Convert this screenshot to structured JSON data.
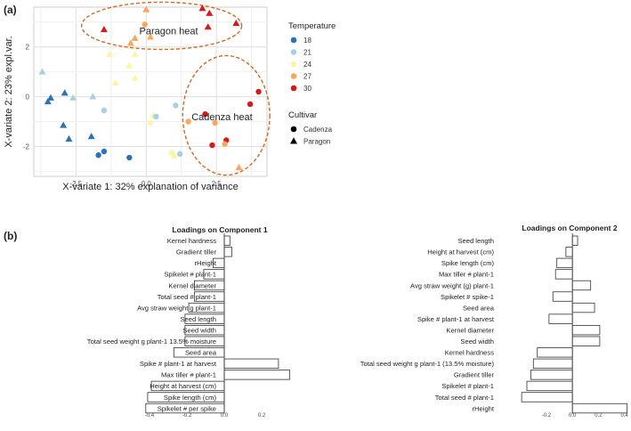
{
  "panel_a": {
    "label": "(a)"
  },
  "panel_b": {
    "label": "(b)"
  },
  "chart_data": [
    {
      "type": "scatter",
      "xlabel": "X-variate 1: 32% explanation of variance",
      "ylabel": "X-variate 2: 23% expl.var.",
      "xlim": [
        -4.0,
        4.3
      ],
      "ylim": [
        -3.2,
        3.6
      ],
      "xticks": [
        -2.5,
        0.0,
        2.5
      ],
      "xtick_labels": [
        "-2.5",
        "0.0",
        "2.5"
      ],
      "yticks": [
        -2,
        0,
        2
      ],
      "ytick_labels": [
        "-2",
        "0",
        "2"
      ],
      "grid": true,
      "legend_position": "right",
      "legend_temperature_title": "Temperature",
      "legend_cultivar_title": "Cultivar",
      "temperatures": [
        {
          "label": "18",
          "color": "#2b72b6"
        },
        {
          "label": "21",
          "color": "#a8cfe5"
        },
        {
          "label": "24",
          "color": "#fdf5a6"
        },
        {
          "label": "27",
          "color": "#f8a75c"
        },
        {
          "label": "30",
          "color": "#d7191c"
        }
      ],
      "cultivars": [
        {
          "label": "Cadenza",
          "shape": "circle"
        },
        {
          "label": "Paragon",
          "shape": "triangle"
        }
      ],
      "annotations": [
        {
          "text": "Paragon heat",
          "cx": 0.8,
          "cy": 2.65
        },
        {
          "text": "Cadenza heat",
          "cx": 2.7,
          "cy": -0.8
        }
      ],
      "ellipses": [
        {
          "cx": 0.55,
          "cy": 2.85,
          "rx": 2.85,
          "ry": 0.95,
          "color": "#d2691e"
        },
        {
          "cx": 2.85,
          "cy": -0.75,
          "rx": 1.55,
          "ry": 2.4,
          "color": "#d2691e"
        }
      ],
      "points": [
        {
          "x": -3.7,
          "y": 1.0,
          "t": "21",
          "c": "Paragon"
        },
        {
          "x": -3.4,
          "y": -0.05,
          "t": "18",
          "c": "Paragon"
        },
        {
          "x": -3.5,
          "y": -0.2,
          "t": "18",
          "c": "Paragon"
        },
        {
          "x": -2.9,
          "y": 0.15,
          "t": "18",
          "c": "Paragon"
        },
        {
          "x": -2.6,
          "y": -0.05,
          "t": "21",
          "c": "Paragon"
        },
        {
          "x": -1.9,
          "y": 0.0,
          "t": "21",
          "c": "Paragon"
        },
        {
          "x": -2.95,
          "y": -1.15,
          "t": "18",
          "c": "Paragon"
        },
        {
          "x": -2.75,
          "y": -1.7,
          "t": "18",
          "c": "Paragon"
        },
        {
          "x": -1.95,
          "y": -1.6,
          "t": "18",
          "c": "Paragon"
        },
        {
          "x": -1.5,
          "y": -0.55,
          "t": "21",
          "c": "Cadenza"
        },
        {
          "x": -1.7,
          "y": -2.35,
          "t": "18",
          "c": "Cadenza"
        },
        {
          "x": -1.5,
          "y": -2.2,
          "t": "18",
          "c": "Cadenza"
        },
        {
          "x": -0.6,
          "y": -2.45,
          "t": "18",
          "c": "Cadenza"
        },
        {
          "x": -1.3,
          "y": 1.7,
          "t": "24",
          "c": "Paragon"
        },
        {
          "x": -0.4,
          "y": 1.7,
          "t": "24",
          "c": "Paragon"
        },
        {
          "x": -0.6,
          "y": 1.25,
          "t": "24",
          "c": "Paragon"
        },
        {
          "x": -1.1,
          "y": 0.55,
          "t": "24",
          "c": "Paragon"
        },
        {
          "x": -0.4,
          "y": 0.75,
          "t": "24",
          "c": "Paragon"
        },
        {
          "x": 0.0,
          "y": 3.5,
          "t": "27",
          "c": "Paragon"
        },
        {
          "x": -0.05,
          "y": 2.9,
          "t": "27",
          "c": "Cadenza"
        },
        {
          "x": -0.4,
          "y": 2.35,
          "t": "27",
          "c": "Paragon"
        },
        {
          "x": 0.15,
          "y": 2.4,
          "t": "27",
          "c": "Paragon"
        },
        {
          "x": -0.55,
          "y": 2.15,
          "t": "27",
          "c": "Paragon"
        },
        {
          "x": -1.5,
          "y": 2.7,
          "t": "30",
          "c": "Paragon"
        },
        {
          "x": 2.0,
          "y": 3.55,
          "t": "30",
          "c": "Paragon"
        },
        {
          "x": 2.25,
          "y": 3.35,
          "t": "30",
          "c": "Paragon"
        },
        {
          "x": 3.2,
          "y": 2.95,
          "t": "30",
          "c": "Paragon"
        },
        {
          "x": 2.2,
          "y": 2.8,
          "t": "30",
          "c": "Paragon"
        },
        {
          "x": 0.25,
          "y": -0.75,
          "t": "24",
          "c": "Paragon"
        },
        {
          "x": 0.35,
          "y": -0.8,
          "t": "21",
          "c": "Cadenza"
        },
        {
          "x": 0.15,
          "y": -1.05,
          "t": "24",
          "c": "Cadenza"
        },
        {
          "x": 1.05,
          "y": -0.35,
          "t": "21",
          "c": "Cadenza"
        },
        {
          "x": 0.9,
          "y": -2.25,
          "t": "24",
          "c": "Cadenza"
        },
        {
          "x": 1.2,
          "y": -2.3,
          "t": "21",
          "c": "Cadenza"
        },
        {
          "x": 1.0,
          "y": -2.4,
          "t": "24",
          "c": "Cadenza"
        },
        {
          "x": 1.5,
          "y": -1.0,
          "t": "27",
          "c": "Cadenza"
        },
        {
          "x": 2.45,
          "y": -1.05,
          "t": "27",
          "c": "Cadenza"
        },
        {
          "x": 2.1,
          "y": -0.7,
          "t": "30",
          "c": "Cadenza"
        },
        {
          "x": 2.35,
          "y": -1.95,
          "t": "30",
          "c": "Cadenza"
        },
        {
          "x": 2.85,
          "y": -1.75,
          "t": "30",
          "c": "Cadenza"
        },
        {
          "x": 2.8,
          "y": -1.9,
          "t": "27",
          "c": "Cadenza"
        },
        {
          "x": 3.3,
          "y": -2.85,
          "t": "27",
          "c": "Paragon"
        },
        {
          "x": 3.7,
          "y": -0.3,
          "t": "30",
          "c": "Cadenza"
        },
        {
          "x": 4.0,
          "y": 0.2,
          "t": "30",
          "c": "Cadenza"
        }
      ]
    },
    {
      "type": "bar",
      "orientation": "horizontal",
      "title": "Loadings on Component 1",
      "xlim": [
        -0.4,
        0.4
      ],
      "xticks": [
        -0.4,
        -0.2,
        0.0,
        0.2
      ],
      "xtick_labels": [
        "-0.4",
        "-0.2",
        "0.0",
        "0.2"
      ],
      "categories": [
        "Kernel hardness",
        "Gradient tiller",
        "rHeight",
        "Spikelet # plant-1",
        "Kernel diameter",
        "Total seed # plant-1",
        "Avg straw weight g plant-1",
        "Seed length",
        "Seed width",
        "Total seed weight g plant-1 13.5% moisture",
        "Seed area",
        "Spike # plant-1 at harvest",
        "Max tiller # plant-1",
        "Height at harvest (cm)",
        "Spike length (cm)",
        "Spikelet # per spike"
      ],
      "values": [
        0.03,
        0.04,
        -0.06,
        -0.11,
        -0.16,
        -0.16,
        -0.19,
        -0.21,
        -0.21,
        -0.21,
        -0.27,
        0.29,
        0.35,
        -0.39,
        -0.41,
        -0.42
      ]
    },
    {
      "type": "bar",
      "orientation": "horizontal",
      "title": "Loadings on Component 2",
      "xlim": [
        -0.35,
        0.45
      ],
      "xticks": [
        -0.2,
        0.0,
        0.2,
        0.4
      ],
      "xtick_labels": [
        "-0.2",
        "0.0",
        "0.2",
        "0.4"
      ],
      "categories": [
        "Seed length",
        "Height at harvest (cm)",
        "Spike length (cm)",
        "Max tiller # plant-1",
        "Avg straw weight (g) plant-1",
        "Spikelet # spike-1",
        "Seed area",
        "Spike # plant-1 at harvest",
        "Kernel diameter",
        "Seed width",
        "Kernel hardness",
        "Total seed weight g plant-1 (13.5% moisture)",
        "Gradient tiller",
        "Spikelet # plant-1",
        "Total seed # plant-1",
        "rHeight"
      ],
      "values": [
        0.04,
        -0.05,
        -0.12,
        -0.13,
        0.14,
        -0.15,
        0.17,
        -0.18,
        0.21,
        0.21,
        -0.27,
        -0.3,
        -0.32,
        -0.35,
        -0.39,
        0.42
      ]
    }
  ]
}
